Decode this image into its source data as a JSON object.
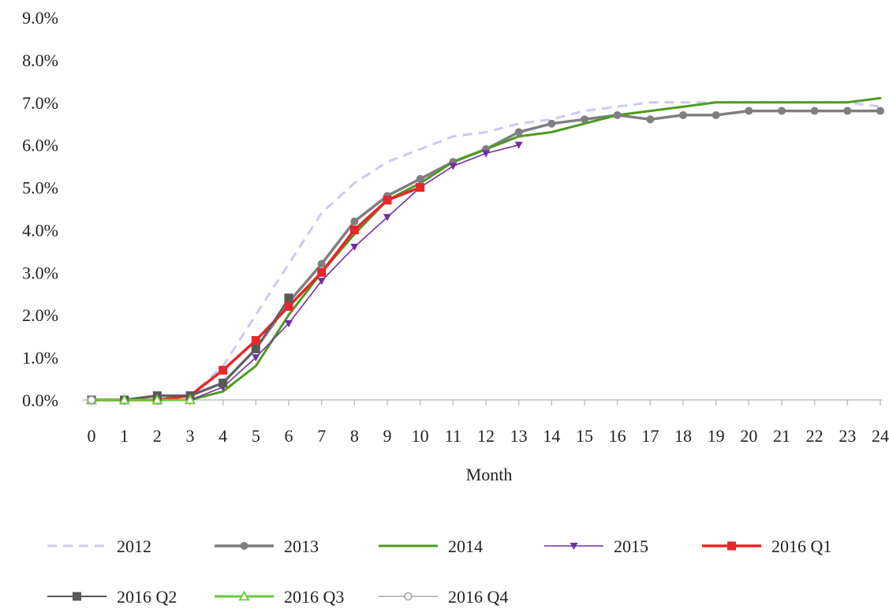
{
  "chart_data": {
    "type": "line",
    "xlabel": "Month",
    "ylabel": "",
    "title": "",
    "ylim": [
      0,
      9
    ],
    "y_unit": "%",
    "y_ticks": [
      "0.0%",
      "1.0%",
      "2.0%",
      "3.0%",
      "4.0%",
      "5.0%",
      "6.0%",
      "7.0%",
      "8.0%",
      "9.0%"
    ],
    "x_ticks": [
      "0",
      "1",
      "2",
      "3",
      "4",
      "5",
      "6",
      "7",
      "8",
      "9",
      "10",
      "11",
      "12",
      "13",
      "14",
      "15",
      "16",
      "17",
      "18",
      "19",
      "20",
      "21",
      "22",
      "23",
      "24"
    ],
    "grid": false,
    "legend_position": "bottom",
    "series": [
      {
        "name": "2012",
        "color": "#c9ccf0",
        "style": "dashed",
        "marker": "none",
        "x": [
          0,
          1,
          2,
          3,
          4,
          5,
          6,
          7,
          8,
          9,
          10,
          11,
          12,
          13,
          14,
          15,
          16,
          17,
          18,
          19,
          20,
          21,
          22,
          23,
          24
        ],
        "y": [
          0,
          0,
          0,
          0.1,
          0.8,
          2.0,
          3.2,
          4.4,
          5.1,
          5.6,
          5.9,
          6.2,
          6.3,
          6.5,
          6.6,
          6.8,
          6.9,
          7.0,
          7.0,
          7.0,
          7.0,
          7.0,
          7.0,
          7.0,
          6.9
        ]
      },
      {
        "name": "2013",
        "color": "#7f7f7f",
        "style": "solid",
        "marker": "circle",
        "x": [
          0,
          1,
          2,
          3,
          4,
          5,
          6,
          7,
          8,
          9,
          10,
          11,
          12,
          13,
          14,
          15,
          16,
          17,
          18,
          19,
          20,
          21,
          22,
          23,
          24
        ],
        "y": [
          0,
          0,
          0.1,
          0.1,
          0.4,
          1.2,
          2.3,
          3.2,
          4.2,
          4.8,
          5.2,
          5.6,
          5.9,
          6.3,
          6.5,
          6.6,
          6.7,
          6.6,
          6.7,
          6.7,
          6.8,
          6.8,
          6.8,
          6.8,
          6.8
        ]
      },
      {
        "name": "2014",
        "color": "#4e9a1e",
        "style": "solid",
        "marker": "none",
        "x": [
          0,
          1,
          2,
          3,
          4,
          5,
          6,
          7,
          8,
          9,
          10,
          11,
          12,
          13,
          14,
          15,
          16,
          17,
          18,
          19,
          20,
          21,
          22,
          23,
          24
        ],
        "y": [
          0,
          0,
          0,
          0,
          0.2,
          0.8,
          2.0,
          3.0,
          3.9,
          4.7,
          5.1,
          5.6,
          5.9,
          6.2,
          6.3,
          6.5,
          6.7,
          6.8,
          6.9,
          7.0,
          7.0,
          7.0,
          7.0,
          7.0,
          7.1
        ]
      },
      {
        "name": "2015",
        "color": "#7030a0",
        "style": "solid",
        "marker": "triangle-down",
        "x": [
          0,
          1,
          2,
          3,
          4,
          5,
          6,
          7,
          8,
          9,
          10,
          11,
          12,
          13
        ],
        "y": [
          0,
          0,
          0,
          0,
          0.3,
          1.0,
          1.8,
          2.8,
          3.6,
          4.3,
          5.0,
          5.5,
          5.8,
          6.0
        ]
      },
      {
        "name": "2016 Q1",
        "color": "#e8262b",
        "style": "solid",
        "marker": "square",
        "x": [
          0,
          1,
          2,
          3,
          4,
          5,
          6,
          7,
          8,
          9,
          10
        ],
        "y": [
          0,
          0,
          0,
          0.1,
          0.7,
          1.4,
          2.2,
          3.0,
          4.0,
          4.7,
          5.0
        ]
      },
      {
        "name": "2016 Q2",
        "color": "#595959",
        "style": "solid",
        "marker": "square",
        "x": [
          0,
          1,
          2,
          3,
          4,
          5,
          6
        ],
        "y": [
          0,
          0,
          0.1,
          0.1,
          0.4,
          1.2,
          2.4
        ]
      },
      {
        "name": "2016 Q3",
        "color": "#66cc33",
        "style": "solid",
        "marker": "triangle-up",
        "x": [
          0,
          1,
          2,
          3
        ],
        "y": [
          0,
          0,
          0,
          0
        ]
      },
      {
        "name": "2016 Q4",
        "color": "#a6a6a6",
        "style": "solid",
        "marker": "open-circle",
        "x": [
          0
        ],
        "y": [
          0
        ]
      }
    ]
  }
}
